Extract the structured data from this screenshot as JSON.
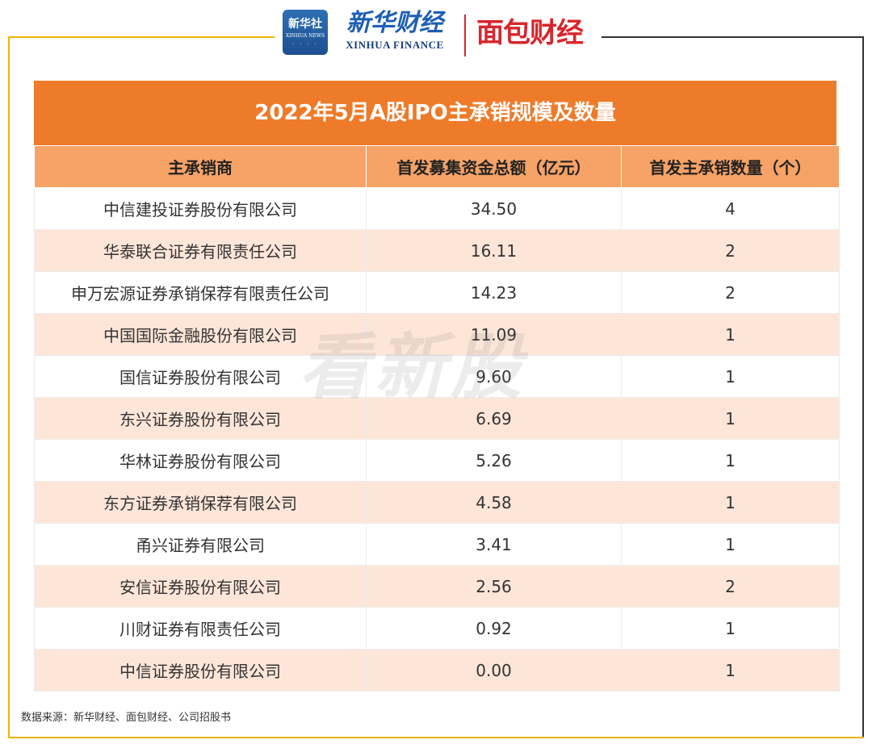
{
  "brand": {
    "xinhua_logo_cn": "新华社",
    "xinhua_logo_en": "XINHUA NEWS",
    "finance_cn": "新华财经",
    "finance_en": "XINHUA FINANCE",
    "mianbao": "面包财经"
  },
  "table": {
    "title": "2022年5月A股IPO主承销规模及数量",
    "headers": [
      "主承销商",
      "首发募集资金总额（亿元）",
      "首发主承销数量（个）"
    ],
    "rows": [
      {
        "name": "中信建投证券股份有限公司",
        "amount": "34.50",
        "count": "4"
      },
      {
        "name": "华泰联合证券有限责任公司",
        "amount": "16.11",
        "count": "2"
      },
      {
        "name": "申万宏源证券承销保荐有限责任公司",
        "amount": "14.23",
        "count": "2"
      },
      {
        "name": "中国国际金融股份有限公司",
        "amount": "11.09",
        "count": "1"
      },
      {
        "name": "国信证券股份有限公司",
        "amount": "9.60",
        "count": "1"
      },
      {
        "name": "东兴证券股份有限公司",
        "amount": "6.69",
        "count": "1"
      },
      {
        "name": "华林证券股份有限公司",
        "amount": "5.26",
        "count": "1"
      },
      {
        "name": "东方证券承销保荐有限公司",
        "amount": "4.58",
        "count": "1"
      },
      {
        "name": "甬兴证券有限公司",
        "amount": "3.41",
        "count": "1"
      },
      {
        "name": "安信证券股份有限公司",
        "amount": "2.56",
        "count": "2"
      },
      {
        "name": "川财证券有限责任公司",
        "amount": "0.92",
        "count": "1"
      },
      {
        "name": "中信证券股份有限公司",
        "amount": "0.00",
        "count": "1"
      }
    ]
  },
  "watermark": "看新股",
  "source": "数据来源：新华财经、面包财经、公司招股书",
  "colors": {
    "title_bg": "#ee7b2a",
    "header_bg": "#f7a266",
    "stripe_bg": "#fde6d8",
    "frame_gold": "#f0b400",
    "brand_blue": "#1e5fb4",
    "brand_red": "#d8262c"
  }
}
